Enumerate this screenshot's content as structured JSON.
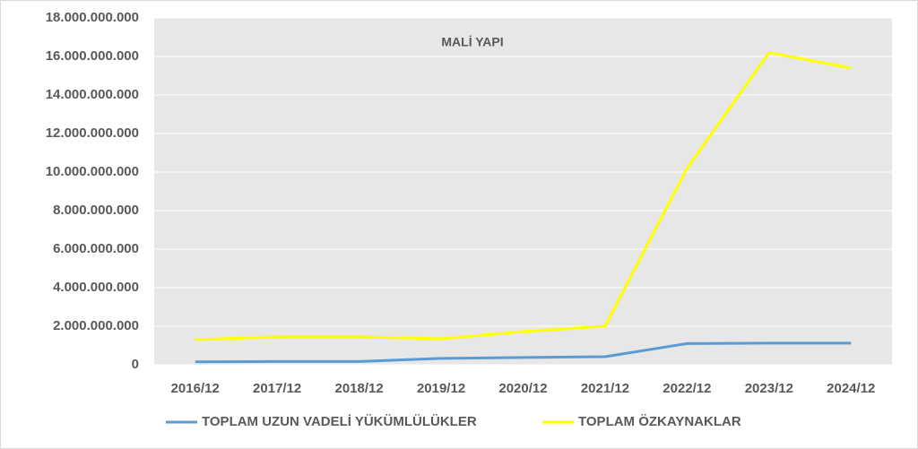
{
  "chart_data": {
    "type": "line",
    "title": "MALİ YAPI",
    "categories": [
      "2016/12",
      "2017/12",
      "2018/12",
      "2019/12",
      "2020/12",
      "2021/12",
      "2022/12",
      "2023/12",
      "2024/12"
    ],
    "series": [
      {
        "name": "TOPLAM UZUN VADELİ YÜKÜMLÜLÜKLER",
        "color": "#5b9bd5",
        "values": [
          150000000,
          170000000,
          170000000,
          330000000,
          380000000,
          420000000,
          1100000000,
          1120000000,
          1120000000
        ]
      },
      {
        "name": "TOPLAM ÖZKAYNAKLAR",
        "color": "#ffff00",
        "values": [
          1300000000,
          1450000000,
          1450000000,
          1350000000,
          1720000000,
          2000000000,
          10200000000,
          16200000000,
          15400000000
        ]
      }
    ],
    "ylim": [
      0,
      18000000000
    ],
    "yticks": [
      0,
      {
        "value": 2000000000,
        "label": "2.000.000.000"
      },
      {
        "value": 4000000000,
        "label": "4.000.000.000"
      },
      {
        "value": 6000000000,
        "label": "6.000.000.000"
      },
      {
        "value": 8000000000,
        "label": "8.000.000.000"
      },
      {
        "value": 10000000000,
        "label": "10.000.000.000"
      },
      {
        "value": 12000000000,
        "label": "12.000.000.000"
      },
      {
        "value": 14000000000,
        "label": "14.000.000.000"
      },
      {
        "value": 16000000000,
        "label": "16.000.000.000"
      },
      {
        "value": 18000000000,
        "label": "18.000.000.000"
      }
    ],
    "grid": true,
    "legend": "bottom"
  }
}
